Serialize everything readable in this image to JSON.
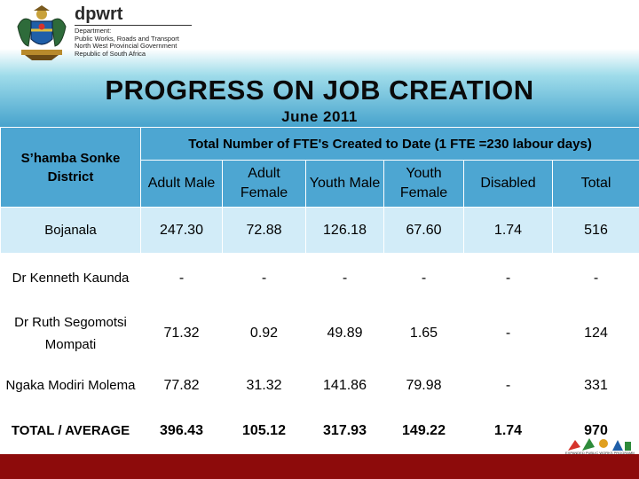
{
  "header": {
    "org_abbr": "dpwrt",
    "org_lines": [
      "Department:",
      "Public Works, Roads and Transport",
      "North West Provincial Government",
      "Republic of South Africa"
    ],
    "crest_icon": "coat-of-arms-icon"
  },
  "title": "PROGRESS ON JOB CREATION",
  "subtitle": "June 2011",
  "table": {
    "corner_label": "S’hamba Sonke District",
    "group_header": "Total Number of FTE's Created to Date (1 FTE =230 labour days)",
    "columns": [
      "Adult Male",
      "Adult Female",
      "Youth Male",
      "Youth Female",
      "Disabled",
      "Total"
    ],
    "rows": [
      {
        "district": "Bojanala",
        "values": [
          "247.30",
          "72.88",
          "126.18",
          "67.60",
          "1.74",
          "516"
        ]
      },
      {
        "district": "Dr Kenneth Kaunda",
        "values": [
          "-",
          "-",
          "-",
          "-",
          "-",
          "-"
        ]
      },
      {
        "district": "Dr Ruth Segomotsi Mompati",
        "values": [
          "71.32",
          "0.92",
          "49.89",
          "1.65",
          "-",
          "124"
        ]
      },
      {
        "district": "Ngaka Modiri Molema",
        "values": [
          "77.82",
          "31.32",
          "141.86",
          "79.98",
          "-",
          "331"
        ]
      },
      {
        "district": "TOTAL / AVERAGE",
        "values": [
          "396.43",
          "105.12",
          "317.93",
          "149.22",
          "1.74",
          "970"
        ]
      }
    ]
  },
  "footer": {
    "logo_icon": "epwp-logo-icon",
    "logo_text": "EXPANDED PUBLIC WORKS PROGRAMME",
    "bar_color": "#8d0b0b"
  },
  "colors": {
    "header_cell": "#4da6d2",
    "light_row": "#d2ecf8",
    "white_row": "#ffffff"
  }
}
